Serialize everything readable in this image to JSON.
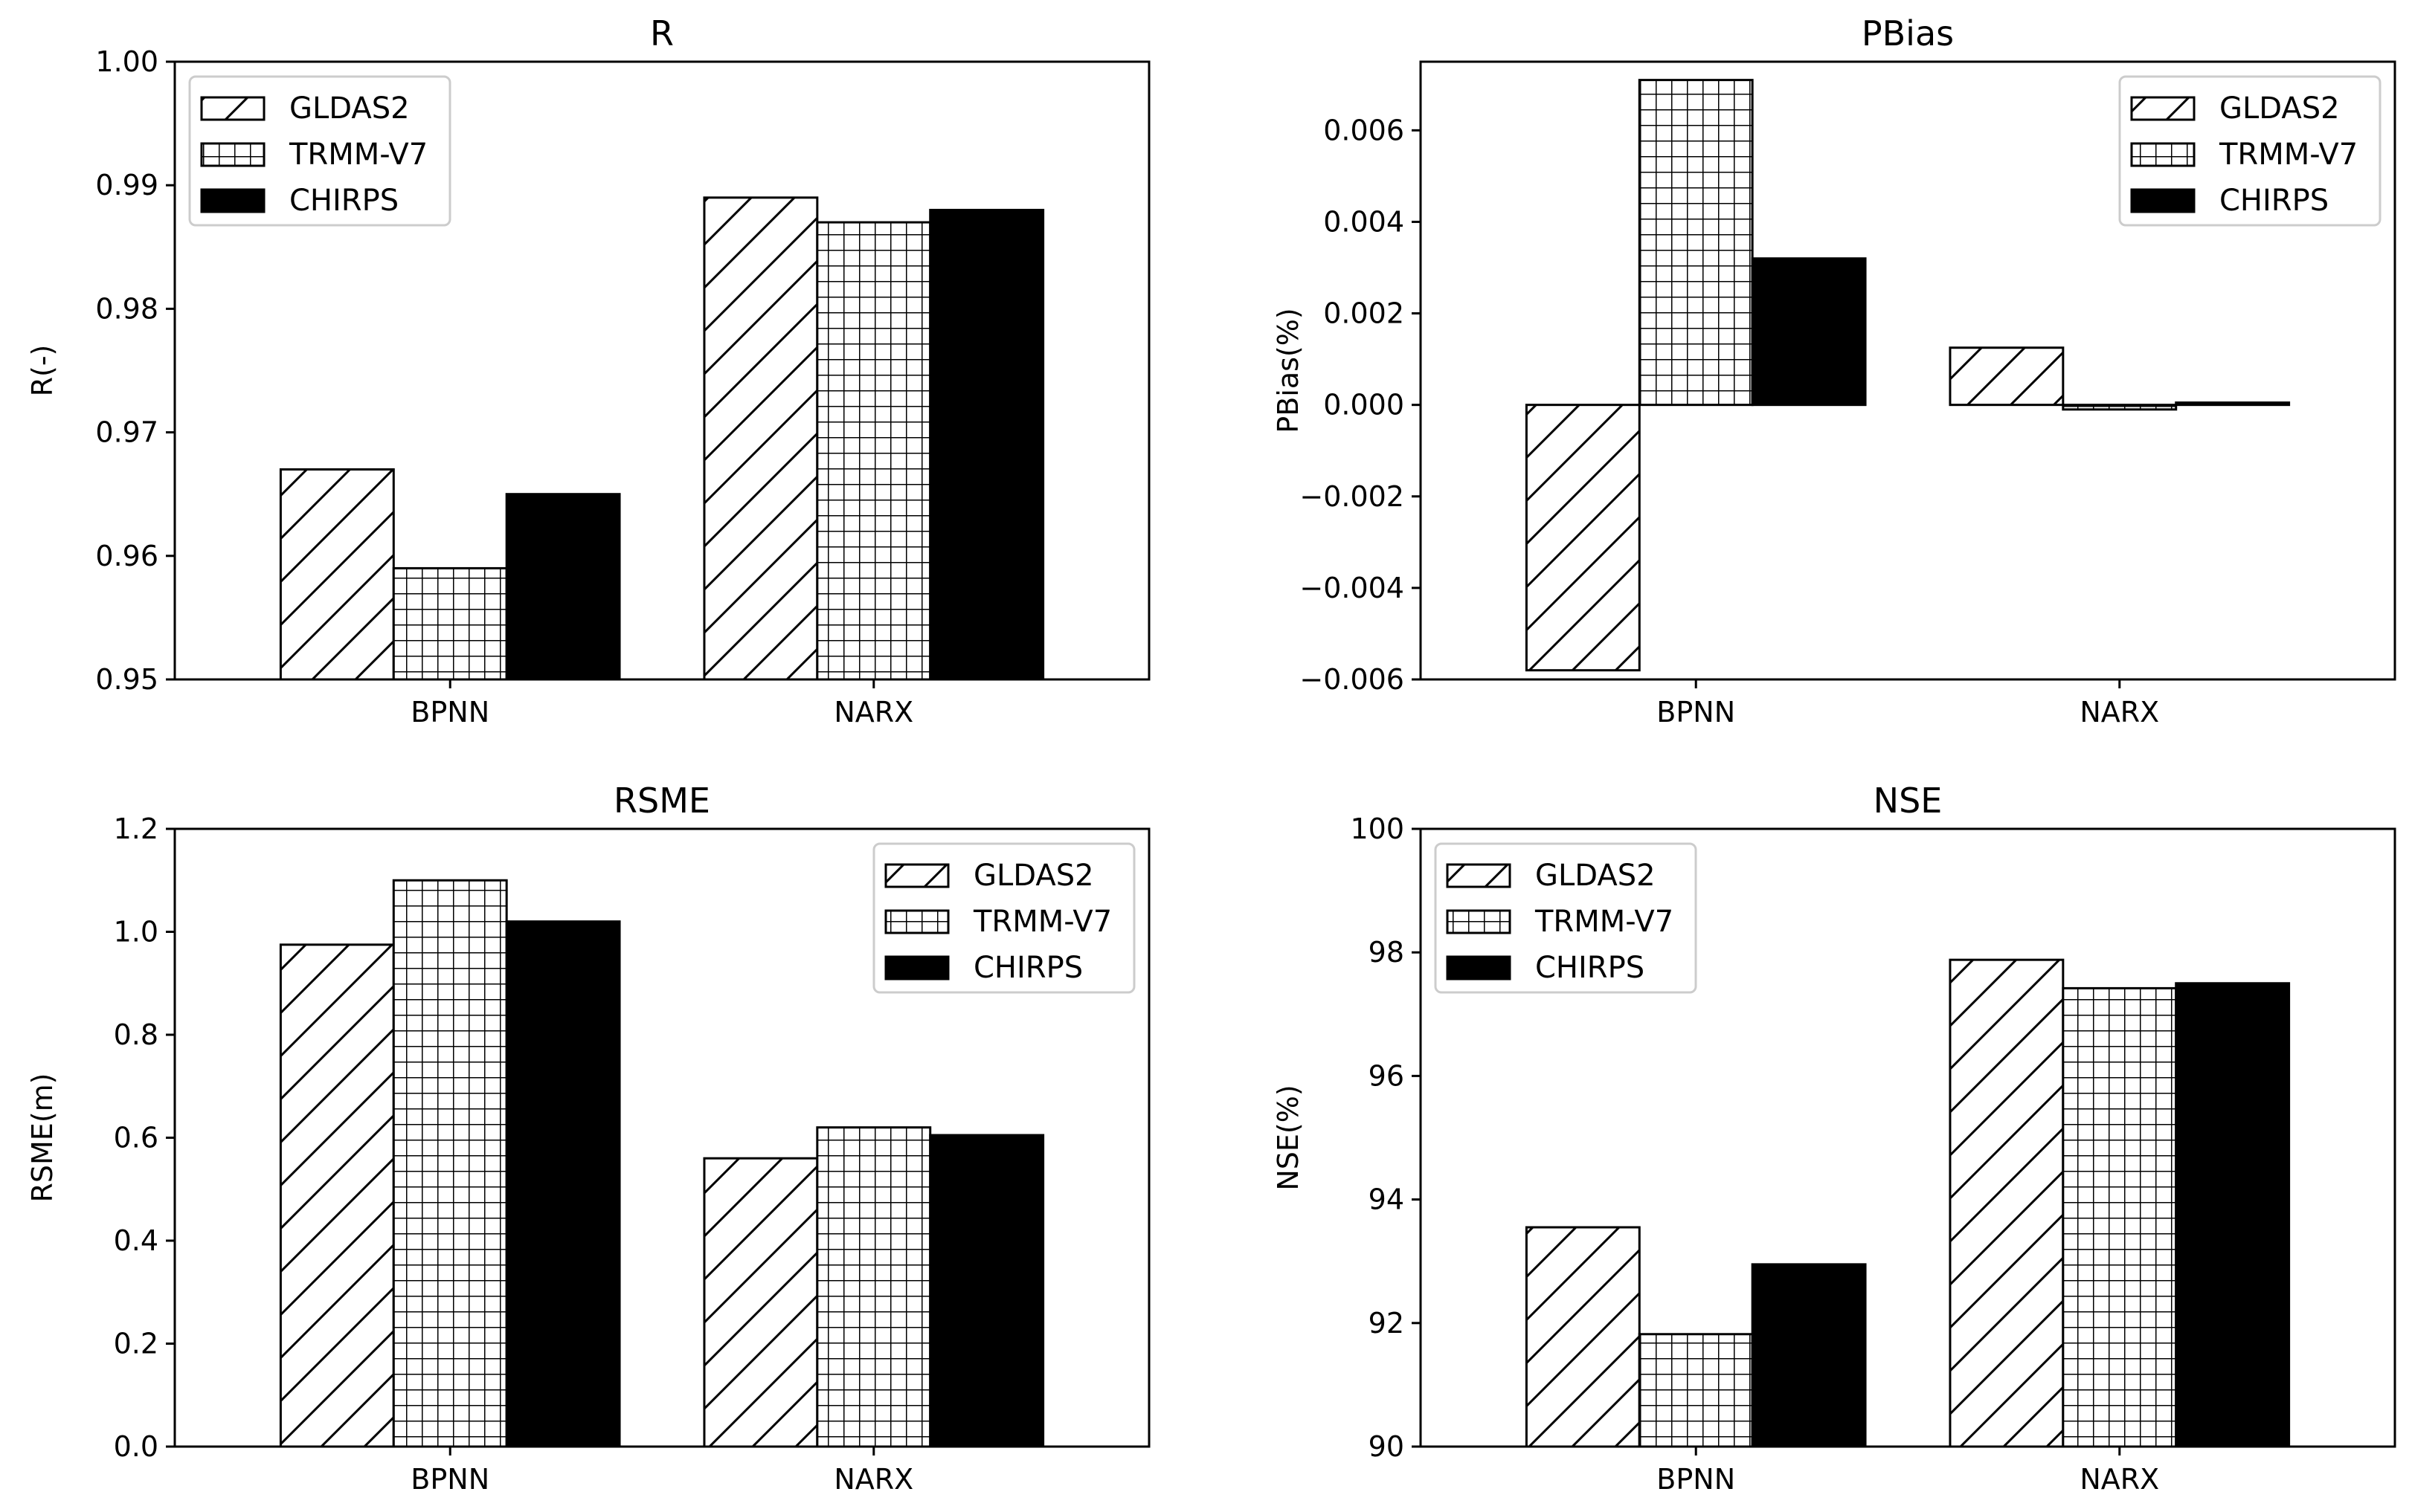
{
  "chart_data": [
    {
      "type": "bar",
      "title": "R",
      "xlabel": "",
      "ylabel": "R(-)",
      "categories": [
        "BPNN",
        "NARX"
      ],
      "ylim": [
        0.95,
        1.0
      ],
      "yticks": [
        "0.95",
        "0.96",
        "0.97",
        "0.98",
        "0.99",
        "1.00"
      ],
      "legend_position": "top-left",
      "series": [
        {
          "name": "GLDAS2",
          "values": [
            0.967,
            0.989
          ]
        },
        {
          "name": "TRMM-V7",
          "values": [
            0.959,
            0.987
          ]
        },
        {
          "name": "CHIRPS",
          "values": [
            0.965,
            0.988
          ]
        }
      ]
    },
    {
      "type": "bar",
      "title": "PBias",
      "xlabel": "",
      "ylabel": "PBias(%)",
      "categories": [
        "BPNN",
        "NARX"
      ],
      "ylim": [
        -0.006,
        0.0075
      ],
      "yticks": [
        "−0.006",
        "−0.004",
        "−0.002",
        "0.000",
        "0.002",
        "0.004",
        "0.006"
      ],
      "legend_position": "top-right",
      "series": [
        {
          "name": "GLDAS2",
          "values": [
            -0.0058,
            0.00125
          ]
        },
        {
          "name": "TRMM-V7",
          "values": [
            0.0071,
            -0.0001
          ]
        },
        {
          "name": "CHIRPS",
          "values": [
            0.0032,
            5e-05
          ]
        }
      ]
    },
    {
      "type": "bar",
      "title": "RSME",
      "xlabel": "",
      "ylabel": "RSME(m)",
      "categories": [
        "BPNN",
        "NARX"
      ],
      "ylim": [
        0.0,
        1.2
      ],
      "yticks": [
        "0.0",
        "0.2",
        "0.4",
        "0.6",
        "0.8",
        "1.0",
        "1.2"
      ],
      "legend_position": "top-right",
      "series": [
        {
          "name": "GLDAS2",
          "values": [
            0.975,
            0.56
          ]
        },
        {
          "name": "TRMM-V7",
          "values": [
            1.1,
            0.62
          ]
        },
        {
          "name": "CHIRPS",
          "values": [
            1.02,
            0.605
          ]
        }
      ]
    },
    {
      "type": "bar",
      "title": "NSE",
      "xlabel": "",
      "ylabel": "NSE(%)",
      "categories": [
        "BPNN",
        "NARX"
      ],
      "ylim": [
        90,
        100
      ],
      "yticks": [
        "90",
        "92",
        "94",
        "96",
        "98",
        "100"
      ],
      "legend_position": "top-left",
      "series": [
        {
          "name": "GLDAS2",
          "values": [
            93.55,
            97.88
          ]
        },
        {
          "name": "TRMM-V7",
          "values": [
            91.82,
            97.42
          ]
        },
        {
          "name": "CHIRPS",
          "values": [
            92.95,
            97.5
          ]
        }
      ]
    }
  ]
}
